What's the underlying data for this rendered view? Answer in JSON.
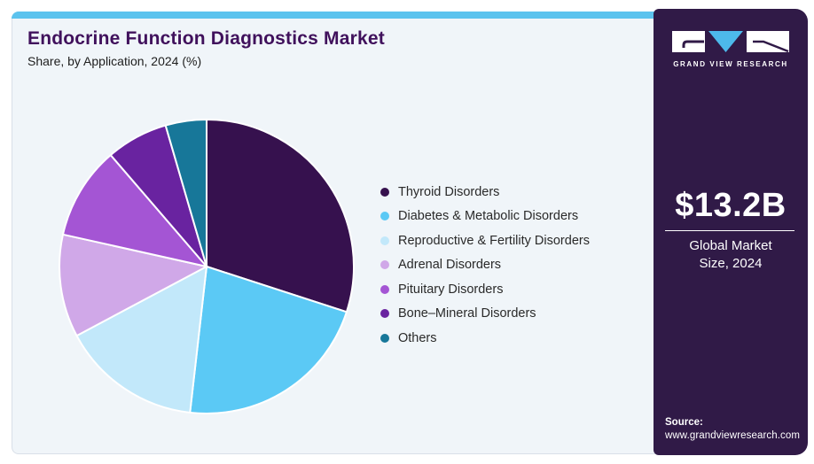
{
  "header": {
    "title": "Endocrine Function Diagnostics Market",
    "subtitle": "Share, by Application, 2024 (%)"
  },
  "chart_data": {
    "type": "pie",
    "title": "Endocrine Function Diagnostics Market Share, by Application, 2024 (%)",
    "categories": [
      "Thyroid Disorders",
      "Diabetes & Metabolic Disorders",
      "Reproductive & Fertility Disorders",
      "Adrenal Disorders",
      "Pituitary Disorders",
      "Bone–Mineral Disorders",
      "Others"
    ],
    "values": [
      30.0,
      21.8,
      15.4,
      11.3,
      10.2,
      6.8,
      4.5
    ],
    "unit": "%",
    "colors": [
      "#36114e",
      "#5bc9f5",
      "#c2e8fa",
      "#d0a8e8",
      "#a455d4",
      "#6923a0",
      "#177799"
    ],
    "start_angle_deg": 0,
    "direction": "clockwise",
    "separator_color": "#ffffff",
    "legend_position": "right"
  },
  "sidebar": {
    "brand_name": "GRAND VIEW RESEARCH",
    "market_size_value": "$13.2B",
    "market_size_label": "Global Market Size, 2024",
    "source_label": "Source:",
    "source_url": "www.grandviewresearch.com",
    "colors": {
      "background": "#301a47",
      "accent_triangle": "#4db9eb"
    }
  },
  "theme": {
    "top_bar_color": "#5cc3ee",
    "card_background": "#f0f5f9",
    "title_color": "#40115c"
  }
}
